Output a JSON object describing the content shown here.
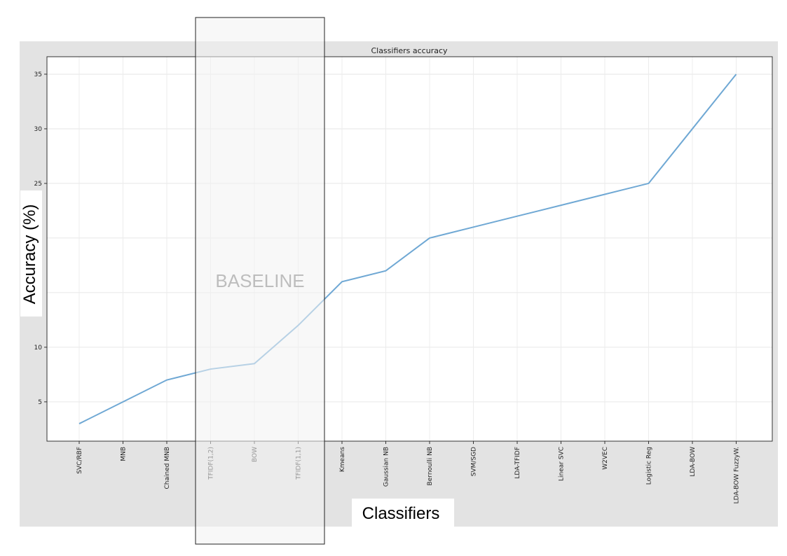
{
  "chart_data": {
    "type": "line",
    "title": "Classifiers accuracy",
    "xlabel": "Classifiers",
    "ylabel": "Accuracy (%)",
    "categories": [
      "SVC/RBF",
      "MNB",
      "Chained MNB",
      "TFIDF(1,2)",
      "BOW",
      "TFIDF(1,1)",
      "Kmeans",
      "Gaussian NB",
      "Bernoulli NB",
      "SVM/SGD",
      "LDA-TFIDF",
      "Linear SVC",
      "W2VEC",
      "Logistic Reg",
      "LDA-BOW",
      "LDA-BOW FuzzyW."
    ],
    "values": [
      3,
      5,
      7,
      8,
      8.5,
      12,
      16,
      17,
      20,
      21,
      22,
      23,
      24,
      25,
      30,
      35
    ],
    "yticks": [
      5,
      10,
      25,
      30,
      35
    ],
    "ylim": [
      1.4,
      36.6
    ],
    "grid": true,
    "series_color": "#6fa8d4",
    "annotation": {
      "text": "BASELINE",
      "highlighted_categories": [
        "TFIDF(1,2)",
        "BOW",
        "TFIDF(1,1)"
      ]
    }
  }
}
